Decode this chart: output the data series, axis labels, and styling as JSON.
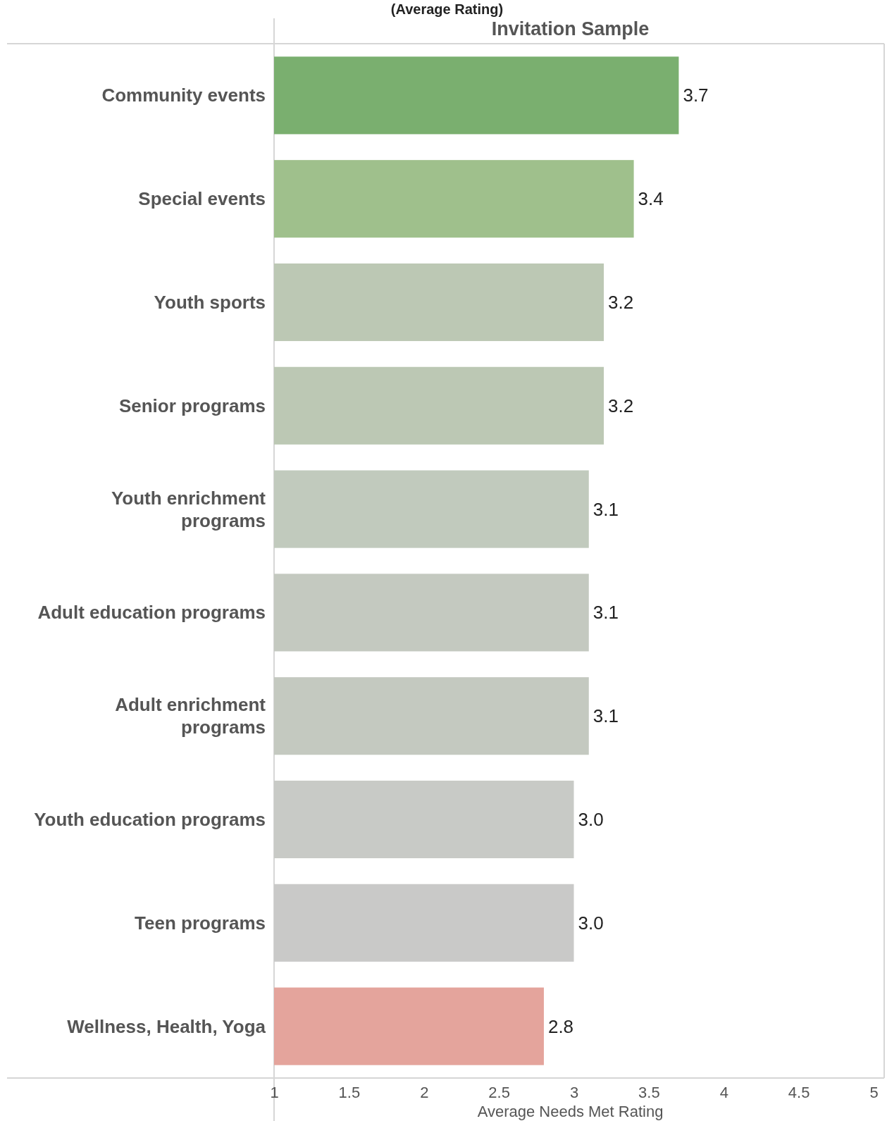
{
  "chart_data": {
    "type": "bar",
    "orientation": "horizontal",
    "title": "(Average Rating)",
    "subtitle": "Invitation Sample",
    "xlabel": "Average Needs Met Rating",
    "categories": [
      "Community events",
      "Special events",
      "Youth sports",
      "Senior programs",
      "Youth enrichment programs",
      "Adult education programs",
      "Adult enrichment programs",
      "Youth education programs",
      "Teen programs",
      "Wellness, Health, Yoga"
    ],
    "values": [
      3.7,
      3.4,
      3.2,
      3.2,
      3.1,
      3.1,
      3.1,
      3.0,
      3.0,
      2.8
    ],
    "value_labels": [
      "3.7",
      "3.4",
      "3.2",
      "3.2",
      "3.1",
      "3.1",
      "3.1",
      "3.0",
      "3.0",
      "2.8"
    ],
    "colors": [
      "#7aaf6f",
      "#9fc08c",
      "#bcc8b4",
      "#bcc8b4",
      "#c1cabd",
      "#c4c9c0",
      "#c4c9c0",
      "#c8cac6",
      "#c9c9c8",
      "#e4a49c"
    ],
    "xlim": [
      1,
      5
    ],
    "xticks": [
      1,
      1.5,
      2,
      2.5,
      3,
      3.5,
      4,
      4.5,
      5
    ],
    "grid": false
  }
}
